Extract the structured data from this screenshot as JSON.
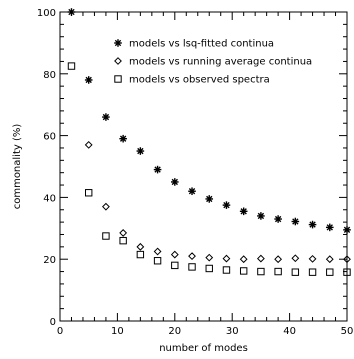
{
  "chart_data": {
    "type": "scatter",
    "xlabel": "number of modes",
    "ylabel": "commonality (%)",
    "xlim": [
      0,
      50
    ],
    "ylim": [
      0,
      100
    ],
    "xticks": [
      0,
      10,
      20,
      30,
      40,
      50
    ],
    "yticks": [
      0,
      20,
      40,
      60,
      80,
      100
    ],
    "x_minor_step": 2,
    "y_minor_step": 4,
    "grid": false,
    "legend_position": "top-center",
    "series": [
      {
        "name": "models vs lsq-fitted continua",
        "marker": "asterisk",
        "x": [
          2,
          5,
          8,
          11,
          14,
          17,
          20,
          23,
          26,
          29,
          32,
          35,
          38,
          41,
          44,
          47,
          50
        ],
        "y": [
          100,
          78,
          66,
          59,
          55,
          49,
          45,
          42,
          39.5,
          37.5,
          35.5,
          34,
          33,
          32.2,
          31.2,
          30.3,
          29.5
        ]
      },
      {
        "name": "models vs running average continua",
        "marker": "diamond",
        "x": [
          5,
          8,
          11,
          14,
          17,
          20,
          23,
          26,
          29,
          32,
          35,
          38,
          41,
          44,
          47,
          50
        ],
        "y": [
          57,
          37,
          28.5,
          24,
          22.5,
          21.5,
          21,
          20.5,
          20.2,
          20,
          20.2,
          20,
          20.3,
          20.1,
          20,
          20
        ]
      },
      {
        "name": "models vs observed spectra",
        "marker": "square",
        "x": [
          2,
          5,
          8,
          11,
          14,
          17,
          20,
          23,
          26,
          29,
          32,
          35,
          38,
          41,
          44,
          47,
          50
        ],
        "y": [
          82.5,
          41.5,
          27.5,
          26,
          21.5,
          19.5,
          18,
          17.5,
          17,
          16.5,
          16.2,
          16,
          16,
          15.8,
          15.8,
          15.8,
          15.8
        ]
      }
    ]
  }
}
